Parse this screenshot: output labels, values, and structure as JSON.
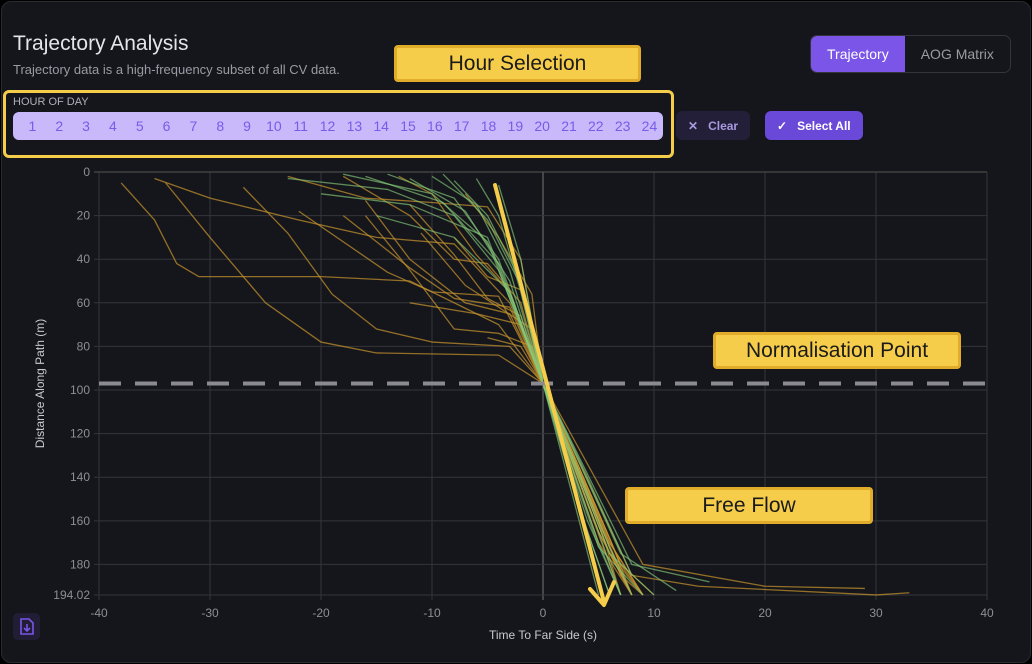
{
  "header": {
    "title": "Trajectory Analysis",
    "subtitle": "Trajectory data is a high-frequency subset of all CV data."
  },
  "view_toggle": {
    "options": [
      {
        "label": "Trajectory",
        "active": true
      },
      {
        "label": "AOG Matrix",
        "active": false
      }
    ]
  },
  "hour_filter": {
    "label": "HOUR OF DAY",
    "hours": [
      "1",
      "2",
      "3",
      "4",
      "5",
      "6",
      "7",
      "8",
      "9",
      "10",
      "11",
      "12",
      "13",
      "14",
      "15",
      "16",
      "17",
      "18",
      "19",
      "20",
      "21",
      "22",
      "23",
      "24"
    ],
    "clear_label": "Clear",
    "select_all_label": "Select All"
  },
  "annotations": {
    "hour_selection": "Hour Selection",
    "normalisation_point": "Normalisation Point",
    "free_flow": "Free Flow"
  },
  "colors": {
    "accent": "#7a55e8",
    "queued": "#c9962e",
    "free_flow": "#86c97a",
    "annotation": "#f5cd4a"
  },
  "chart_data": {
    "type": "line",
    "xlabel": "Time To Far Side (s)",
    "ylabel": "Distance Along Path (m)",
    "xlim": [
      -40,
      40
    ],
    "ylim": [
      0,
      194.02
    ],
    "y_inverted": true,
    "grid": true,
    "xticks": [
      "-40",
      "-30",
      "-20",
      "-10",
      "0",
      "10",
      "20",
      "30",
      "40"
    ],
    "yticks": [
      "0",
      "20",
      "40",
      "60",
      "80",
      "100",
      "120",
      "140",
      "160",
      "180",
      "194.02"
    ],
    "reference_line": {
      "y": 97,
      "style": "dashed"
    },
    "series": [
      {
        "group": "queued",
        "points": [
          [
            -38,
            5
          ],
          [
            -35,
            22
          ],
          [
            -33,
            42
          ],
          [
            -31,
            48
          ],
          [
            -20,
            48
          ],
          [
            -12,
            50
          ],
          [
            -4,
            70
          ],
          [
            0,
            97
          ],
          [
            5,
            160
          ],
          [
            8,
            194
          ]
        ]
      },
      {
        "group": "queued",
        "points": [
          [
            -35,
            3
          ],
          [
            -30,
            12
          ],
          [
            -22,
            22
          ],
          [
            -15,
            30
          ],
          [
            -8,
            33
          ],
          [
            -3,
            60
          ],
          [
            0,
            97
          ],
          [
            6,
            170
          ],
          [
            9,
            194
          ]
        ]
      },
      {
        "group": "queued",
        "points": [
          [
            -34,
            5
          ],
          [
            -30,
            30
          ],
          [
            -25,
            60
          ],
          [
            -20,
            78
          ],
          [
            -15,
            83
          ],
          [
            -4,
            84
          ],
          [
            0,
            97
          ],
          [
            7,
            180
          ],
          [
            9,
            194
          ]
        ]
      },
      {
        "group": "queued",
        "points": [
          [
            -27,
            7
          ],
          [
            -23,
            28
          ],
          [
            -19,
            56
          ],
          [
            -15,
            72
          ],
          [
            -10,
            78
          ],
          [
            -3,
            80
          ],
          [
            0,
            97
          ],
          [
            6,
            175
          ],
          [
            8,
            194
          ]
        ]
      },
      {
        "group": "queued",
        "points": [
          [
            -23,
            2
          ],
          [
            -16,
            12
          ],
          [
            -10,
            14
          ],
          [
            -5,
            16
          ],
          [
            -2,
            40
          ],
          [
            0,
            97
          ],
          [
            5,
            165
          ],
          [
            8,
            194
          ]
        ]
      },
      {
        "group": "queued",
        "points": [
          [
            -18,
            2
          ],
          [
            -12,
            20
          ],
          [
            -8,
            40
          ],
          [
            -5,
            42
          ],
          [
            -2,
            60
          ],
          [
            0,
            97
          ],
          [
            6,
            175
          ],
          [
            9,
            194
          ]
        ]
      },
      {
        "group": "queued",
        "points": [
          [
            -16,
            13
          ],
          [
            -12,
            40
          ],
          [
            -7,
            60
          ],
          [
            -3,
            65
          ],
          [
            0,
            97
          ],
          [
            5,
            160
          ],
          [
            7,
            194
          ]
        ]
      },
      {
        "group": "queued",
        "points": [
          [
            -16,
            20
          ],
          [
            -12,
            45
          ],
          [
            -8,
            72
          ],
          [
            -4,
            74
          ],
          [
            -1,
            80
          ],
          [
            0,
            97
          ],
          [
            6,
            172
          ],
          [
            8,
            194
          ]
        ]
      },
      {
        "group": "queued",
        "points": [
          [
            -12,
            15
          ],
          [
            -8,
            38
          ],
          [
            -5,
            58
          ],
          [
            -2,
            66
          ],
          [
            0,
            97
          ],
          [
            7,
            180
          ],
          [
            10,
            194
          ]
        ]
      },
      {
        "group": "queued",
        "points": [
          [
            -11,
            28
          ],
          [
            -7,
            52
          ],
          [
            -4,
            62
          ],
          [
            -1,
            72
          ],
          [
            0,
            97
          ],
          [
            6,
            170
          ],
          [
            9,
            194
          ]
        ]
      },
      {
        "group": "queued",
        "points": [
          [
            -13,
            2
          ],
          [
            -10,
            10
          ],
          [
            -6,
            38
          ],
          [
            -3,
            55
          ],
          [
            0,
            97
          ],
          [
            5,
            170
          ],
          [
            8,
            194
          ]
        ]
      },
      {
        "group": "queued",
        "points": [
          [
            -18,
            20
          ],
          [
            -12,
            44
          ],
          [
            -8,
            58
          ],
          [
            -3,
            62
          ],
          [
            0,
            97
          ],
          [
            8,
            185
          ],
          [
            14,
            190
          ],
          [
            30,
            194
          ],
          [
            33,
            193
          ]
        ]
      },
      {
        "group": "queued",
        "points": [
          [
            -22,
            18
          ],
          [
            -14,
            46
          ],
          [
            -10,
            55
          ],
          [
            -4,
            57
          ],
          [
            0,
            97
          ],
          [
            9,
            180
          ],
          [
            20,
            190
          ],
          [
            29,
            191
          ]
        ]
      },
      {
        "group": "queued",
        "points": [
          [
            -8,
            30
          ],
          [
            -5,
            48
          ],
          [
            -2,
            54
          ],
          [
            0,
            97
          ],
          [
            6,
            168
          ],
          [
            8,
            194
          ]
        ]
      },
      {
        "group": "queued",
        "points": [
          [
            -7,
            10
          ],
          [
            -4,
            30
          ],
          [
            -1,
            56
          ],
          [
            0,
            97
          ],
          [
            6,
            180
          ],
          [
            7,
            194
          ]
        ]
      },
      {
        "group": "queued",
        "points": [
          [
            -12,
            60
          ],
          [
            -6,
            65
          ],
          [
            -2,
            70
          ],
          [
            0,
            97
          ],
          [
            5,
            165
          ],
          [
            8,
            194
          ]
        ]
      },
      {
        "group": "queued",
        "points": [
          [
            -5,
            76
          ],
          [
            -2,
            80
          ],
          [
            0,
            97
          ],
          [
            7,
            185
          ],
          [
            9,
            194
          ]
        ]
      },
      {
        "group": "free_flow",
        "points": [
          [
            -23,
            3
          ],
          [
            -14,
            8
          ],
          [
            -8,
            20
          ],
          [
            -4,
            45
          ],
          [
            0,
            97
          ],
          [
            5,
            170
          ],
          [
            7,
            194
          ]
        ]
      },
      {
        "group": "free_flow",
        "points": [
          [
            -18,
            1
          ],
          [
            -10,
            10
          ],
          [
            -5,
            32
          ],
          [
            0,
            97
          ],
          [
            6,
            172
          ],
          [
            8,
            194
          ]
        ]
      },
      {
        "group": "free_flow",
        "points": [
          [
            -14,
            1
          ],
          [
            -8,
            12
          ],
          [
            -4,
            40
          ],
          [
            0,
            97
          ],
          [
            5,
            165
          ],
          [
            7,
            194
          ]
        ]
      },
      {
        "group": "free_flow",
        "points": [
          [
            -10,
            2
          ],
          [
            -6,
            15
          ],
          [
            -3,
            45
          ],
          [
            0,
            97
          ],
          [
            4,
            160
          ],
          [
            7,
            194
          ]
        ]
      },
      {
        "group": "free_flow",
        "points": [
          [
            -8,
            4
          ],
          [
            -5,
            20
          ],
          [
            -2,
            50
          ],
          [
            0,
            97
          ],
          [
            4,
            165
          ],
          [
            6,
            194
          ]
        ]
      },
      {
        "group": "free_flow",
        "points": [
          [
            -6,
            3
          ],
          [
            -4,
            20
          ],
          [
            -2,
            55
          ],
          [
            0,
            97
          ],
          [
            3,
            150
          ],
          [
            6,
            194
          ]
        ]
      },
      {
        "group": "free_flow",
        "points": [
          [
            -4,
            6
          ],
          [
            -2,
            40
          ],
          [
            0,
            97
          ],
          [
            3,
            155
          ],
          [
            5,
            194
          ]
        ]
      },
      {
        "group": "free_flow",
        "points": [
          [
            -12,
            3
          ],
          [
            -7,
            18
          ],
          [
            -3,
            50
          ],
          [
            0,
            97
          ],
          [
            6,
            175
          ],
          [
            10,
            194
          ]
        ]
      },
      {
        "group": "free_flow",
        "points": [
          [
            -16,
            2
          ],
          [
            -9,
            14
          ],
          [
            -4,
            42
          ],
          [
            0,
            97
          ],
          [
            7,
            175
          ],
          [
            12,
            192
          ]
        ]
      },
      {
        "group": "free_flow",
        "points": [
          [
            -15,
            20
          ],
          [
            -8,
            30
          ],
          [
            -3,
            55
          ],
          [
            0,
            97
          ],
          [
            8,
            180
          ],
          [
            15,
            188
          ]
        ]
      },
      {
        "group": "free_flow",
        "points": [
          [
            -9,
            1
          ],
          [
            -5,
            22
          ],
          [
            -2,
            52
          ],
          [
            0,
            97
          ],
          [
            5,
            172
          ],
          [
            9,
            194
          ]
        ]
      },
      {
        "group": "free_flow",
        "points": [
          [
            -20,
            10
          ],
          [
            -12,
            15
          ],
          [
            -5,
            30
          ],
          [
            0,
            97
          ],
          [
            4,
            140
          ],
          [
            8,
            185
          ]
        ]
      }
    ]
  }
}
